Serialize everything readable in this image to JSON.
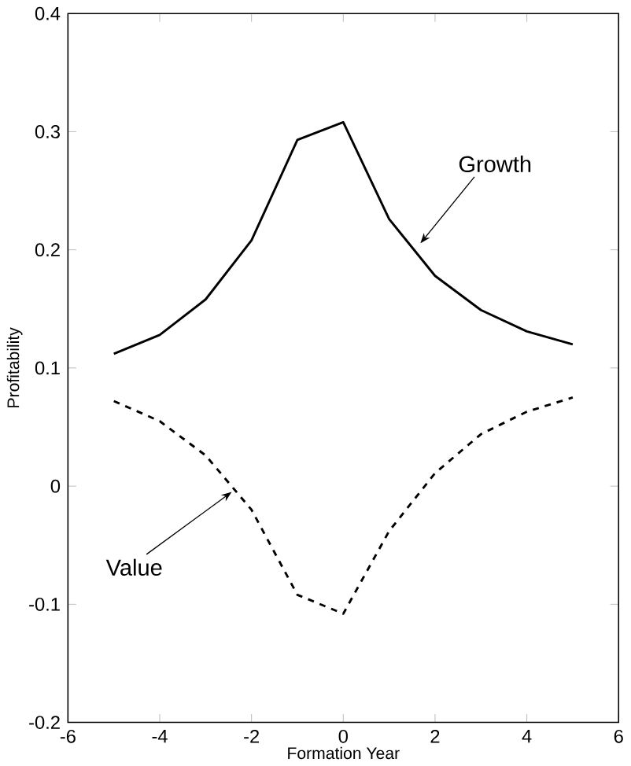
{
  "chart_data": {
    "type": "line",
    "xlabel": "Formation Year",
    "ylabel": "Profitability",
    "x": [
      -5,
      -4,
      -3,
      -2,
      -1,
      0,
      1,
      2,
      3,
      4,
      5
    ],
    "series": [
      {
        "color": "#000000",
        "line_style": "solid",
        "values": [
          0.112,
          0.128,
          0.158,
          0.208,
          0.293,
          0.308,
          0.226,
          0.178,
          0.149,
          0.131,
          0.12
        ]
      },
      {
        "color": "#000000",
        "line_style": "dashed",
        "values": [
          0.072,
          0.055,
          0.026,
          -0.02,
          -0.092,
          -0.108,
          -0.038,
          0.011,
          0.044,
          0.063,
          0.075
        ]
      }
    ],
    "annotations": [
      "Growth",
      "Value"
    ],
    "xlim": [
      -6,
      6
    ],
    "ylim": [
      -0.2,
      0.4
    ],
    "xticks": [
      -6,
      -4,
      -2,
      0,
      2,
      4,
      6
    ],
    "yticks": [
      -0.2,
      -0.1,
      0,
      0.1,
      0.2,
      0.3,
      0.4
    ],
    "grid": false,
    "legend": false
  }
}
